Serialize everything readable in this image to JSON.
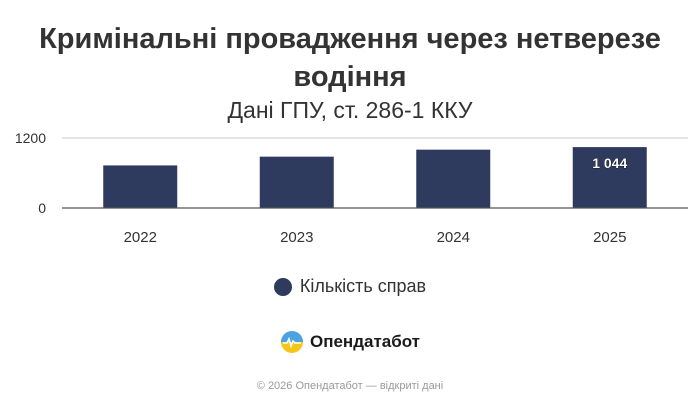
{
  "colors": {
    "bar": "#2e3b5e",
    "axis": "#555555",
    "grid": "#c8c8c8",
    "label_text": "#ffffff"
  },
  "chart_data": {
    "type": "bar",
    "title": "Кримінальні провадження через нетверезе водіння",
    "subtitle": "Дані ГПУ, ст. 286-1 ККУ",
    "categories": [
      "2022",
      "2023",
      "2024",
      "2025"
    ],
    "series": [
      {
        "name": "Кількість справ",
        "values": [
          730,
          880,
          1000,
          1044
        ]
      }
    ],
    "data_labels": [
      "",
      "",
      "",
      "1 044"
    ],
    "y_ticks": [
      "0",
      "1200"
    ],
    "ylim": [
      0,
      1200
    ],
    "grid": true,
    "legend_position": "bottom"
  },
  "brand": {
    "name": "Опендатабот",
    "logo_icon": "opendatabot-logo-icon"
  },
  "footer": "© 2026 Опендатабот — відкриті дані"
}
